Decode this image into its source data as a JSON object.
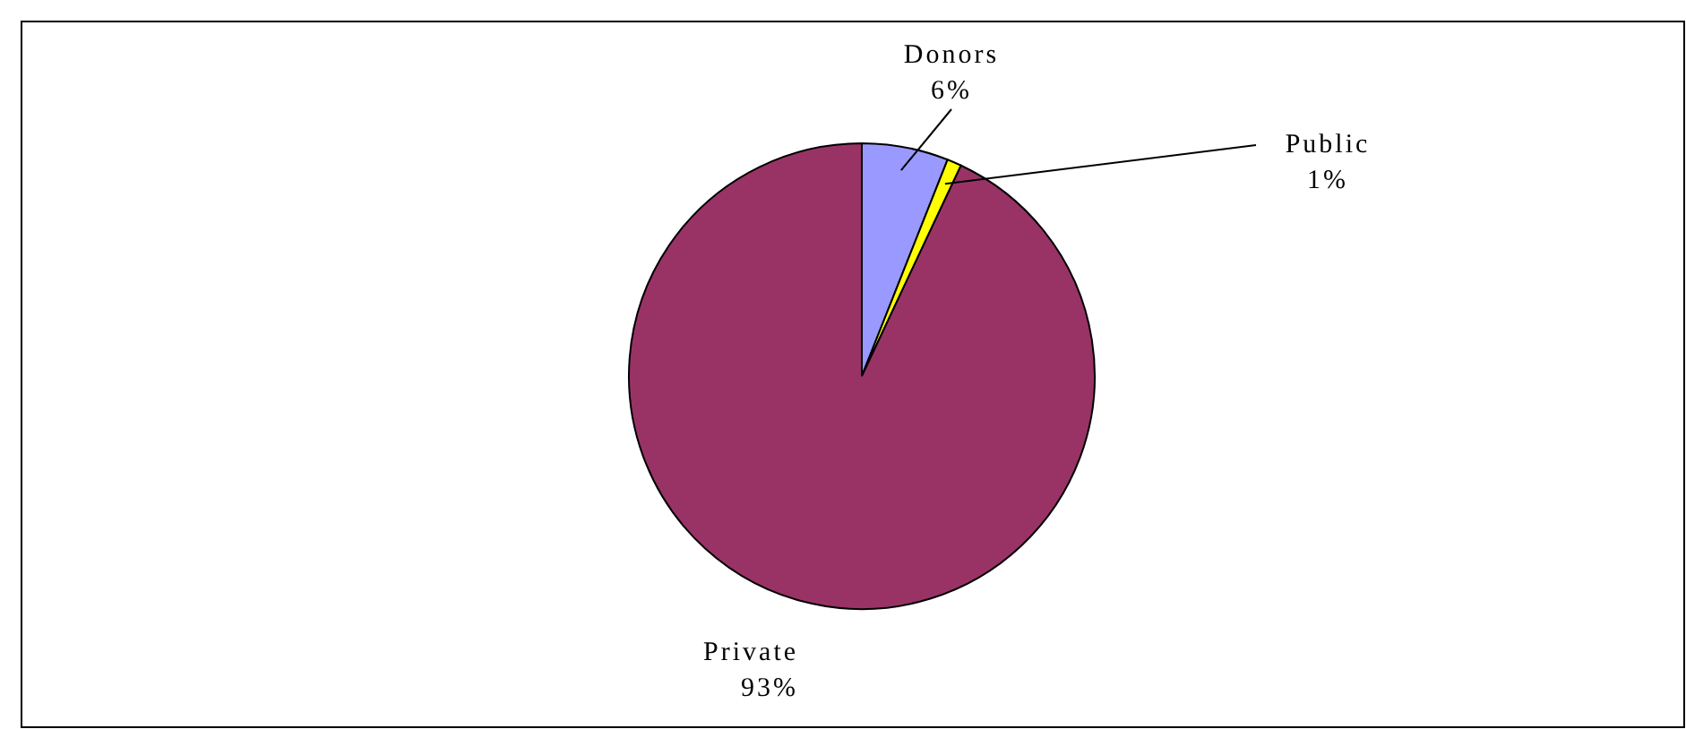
{
  "chart_data": {
    "type": "pie",
    "categories": [
      "Donors",
      "Public",
      "Private"
    ],
    "values": [
      6,
      1,
      93
    ],
    "colors": [
      "#9999ff",
      "#ffff00",
      "#993366"
    ],
    "value_labels": [
      "6%",
      "1%",
      "93%"
    ]
  }
}
